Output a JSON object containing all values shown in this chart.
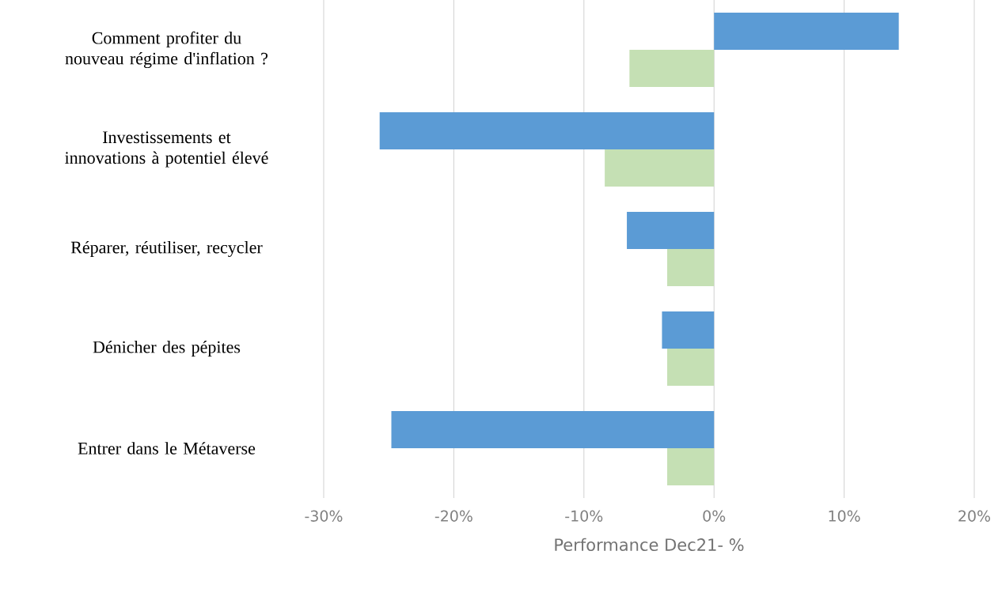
{
  "chart_data": {
    "type": "bar",
    "orientation": "horizontal",
    "categories": [
      "Comment profiter du nouveau régime d'inflation ?",
      "Investissements et innovations à potentiel élevé",
      "Réparer, réutiliser, recycler",
      "Dénicher des pépites",
      "Entrer dans le Métaverse"
    ],
    "series": [
      {
        "color": "#5b9bd5",
        "values": [
          14.2,
          -25.7,
          -6.7,
          -4.0,
          -24.8
        ]
      },
      {
        "color": "#c5e0b4",
        "values": [
          -6.5,
          -8.4,
          -3.6,
          -3.6,
          -3.6
        ]
      }
    ],
    "xlim": [
      -30,
      20
    ],
    "xticks": [
      {
        "value": -30,
        "label": "-30%"
      },
      {
        "value": -20,
        "label": "-20%"
      },
      {
        "value": -10,
        "label": "-10%"
      },
      {
        "value": 0,
        "label": "0%"
      },
      {
        "value": 10,
        "label": "10%"
      },
      {
        "value": 20,
        "label": "20%"
      }
    ],
    "xlabel": "Performance Dec21- %",
    "grid": "x"
  }
}
